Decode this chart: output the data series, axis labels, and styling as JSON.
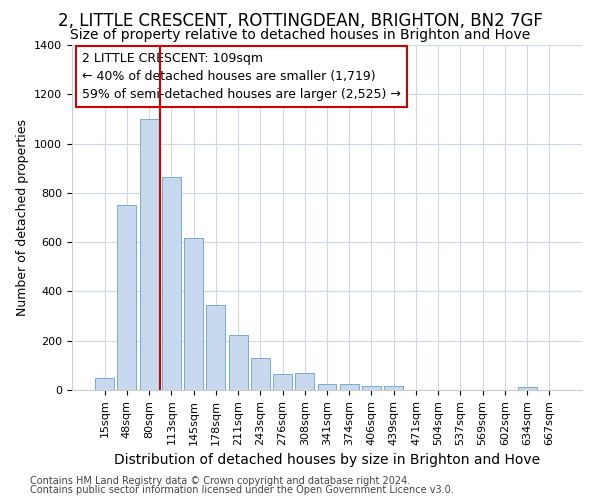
{
  "title": "2, LITTLE CRESCENT, ROTTINGDEAN, BRIGHTON, BN2 7GF",
  "subtitle": "Size of property relative to detached houses in Brighton and Hove",
  "xlabel": "Distribution of detached houses by size in Brighton and Hove",
  "ylabel": "Number of detached properties",
  "footnote1": "Contains HM Land Registry data © Crown copyright and database right 2024.",
  "footnote2": "Contains public sector information licensed under the Open Government Licence v3.0.",
  "bar_labels": [
    "15sqm",
    "48sqm",
    "80sqm",
    "113sqm",
    "145sqm",
    "178sqm",
    "211sqm",
    "243sqm",
    "276sqm",
    "308sqm",
    "341sqm",
    "374sqm",
    "406sqm",
    "439sqm",
    "471sqm",
    "504sqm",
    "537sqm",
    "569sqm",
    "602sqm",
    "634sqm",
    "667sqm"
  ],
  "bar_values": [
    50,
    750,
    1100,
    865,
    615,
    345,
    225,
    130,
    65,
    70,
    25,
    25,
    18,
    15,
    0,
    0,
    0,
    0,
    0,
    12,
    0
  ],
  "bar_color": "#c8d8ee",
  "bar_edge_color": "#7aaad0",
  "vline_color": "#cc0000",
  "annotation_line1": "2 LITTLE CRESCENT: 109sqm",
  "annotation_line2": "← 40% of detached houses are smaller (1,719)",
  "annotation_line3": "59% of semi-detached houses are larger (2,525) →",
  "annotation_box_color": "#ffffff",
  "annotation_box_edge": "#cc0000",
  "ylim": [
    0,
    1400
  ],
  "yticks": [
    0,
    200,
    400,
    600,
    800,
    1000,
    1200,
    1400
  ],
  "background_color": "#ffffff",
  "grid_color": "#d0d8e8",
  "title_fontsize": 12,
  "subtitle_fontsize": 10,
  "ylabel_fontsize": 9,
  "xlabel_fontsize": 10,
  "tick_fontsize": 8,
  "footnote_fontsize": 7,
  "annotation_fontsize": 9
}
